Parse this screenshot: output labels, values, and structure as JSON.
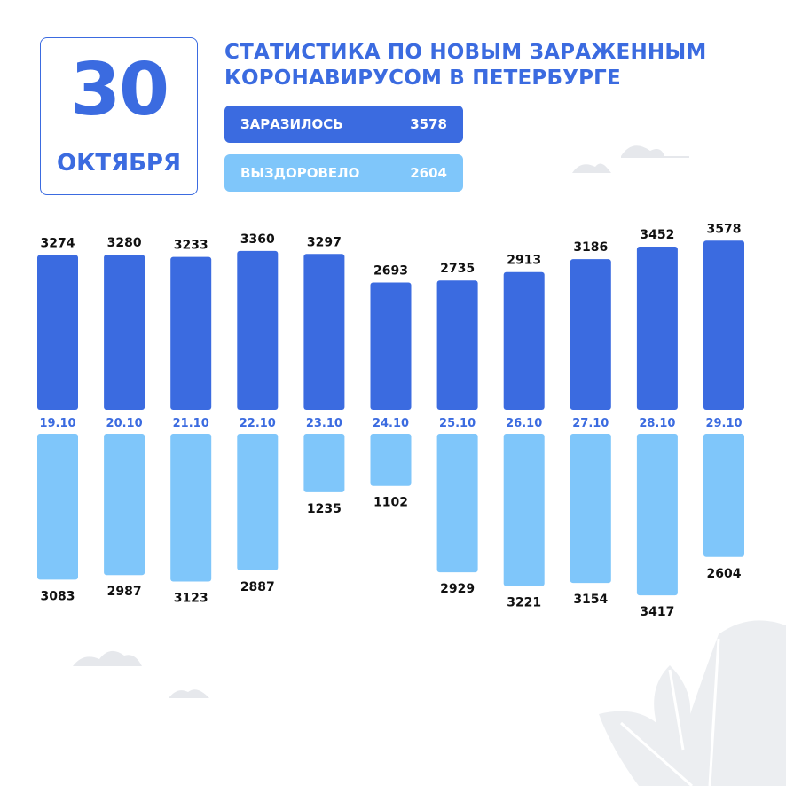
{
  "date_card": {
    "day": "30",
    "month": "ОКТЯБРЯ"
  },
  "title_lines": [
    "СТАТИСТИКА ПО НОВЫМ ЗАРАЖЕННЫМ",
    "КОРОНАВИРУСОМ В ПЕТЕРБУРГЕ"
  ],
  "summary": {
    "infected_label": "ЗАРАЗИЛОСЬ",
    "infected_value": "3578",
    "recovered_label": "ВЫЗДОРОВЕЛО",
    "recovered_value": "2604"
  },
  "colors": {
    "infected": "#3b6be0",
    "recovered": "#7fc6fa",
    "date_label": "#3b6be0",
    "text": "#111111",
    "decor": "#e6e8ec"
  },
  "chart_data": {
    "type": "bar",
    "categories": [
      "19.10",
      "20.10",
      "21.10",
      "22.10",
      "23.10",
      "24.10",
      "25.10",
      "26.10",
      "27.10",
      "28.10",
      "29.10"
    ],
    "series": [
      {
        "name": "ЗАРАЗИЛОСЬ",
        "values": [
          3274,
          3280,
          3233,
          3360,
          3297,
          2693,
          2735,
          2913,
          3186,
          3452,
          3578
        ]
      },
      {
        "name": "ВЫЗДОРОВЕЛО",
        "values": [
          3083,
          2987,
          3123,
          2887,
          1235,
          1102,
          2929,
          3221,
          3154,
          3417,
          2604
        ]
      }
    ],
    "layout": "diverging: infected bars above date row, recovered bars below",
    "grid": false,
    "legend": "top"
  }
}
